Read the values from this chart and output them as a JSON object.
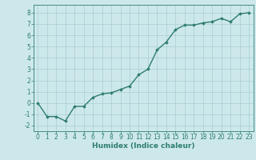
{
  "x": [
    0,
    1,
    2,
    3,
    4,
    5,
    6,
    7,
    8,
    9,
    10,
    11,
    12,
    13,
    14,
    15,
    16,
    17,
    18,
    19,
    20,
    21,
    22,
    23
  ],
  "y": [
    0.0,
    -1.2,
    -1.2,
    -1.6,
    -0.3,
    -0.3,
    0.5,
    0.8,
    0.9,
    1.2,
    1.5,
    2.5,
    3.0,
    4.7,
    5.4,
    6.5,
    6.9,
    6.9,
    7.1,
    7.2,
    7.5,
    7.2,
    7.9,
    8.0
  ],
  "xlabel": "Humidex (Indice chaleur)",
  "xlim": [
    -0.5,
    23.5
  ],
  "ylim": [
    -2.5,
    8.7
  ],
  "yticks": [
    -2,
    -1,
    0,
    1,
    2,
    3,
    4,
    5,
    6,
    7,
    8
  ],
  "xticks": [
    0,
    1,
    2,
    3,
    4,
    5,
    6,
    7,
    8,
    9,
    10,
    11,
    12,
    13,
    14,
    15,
    16,
    17,
    18,
    19,
    20,
    21,
    22,
    23
  ],
  "line_color": "#2e7d6e",
  "marker": "D",
  "marker_size": 1.8,
  "bg_color": "#cde8eb",
  "grid_color": "#a8cdd1",
  "axis_color": "#2e7d6e",
  "xlabel_fontsize": 6.5,
  "tick_fontsize": 5.5,
  "line_width": 1.0
}
